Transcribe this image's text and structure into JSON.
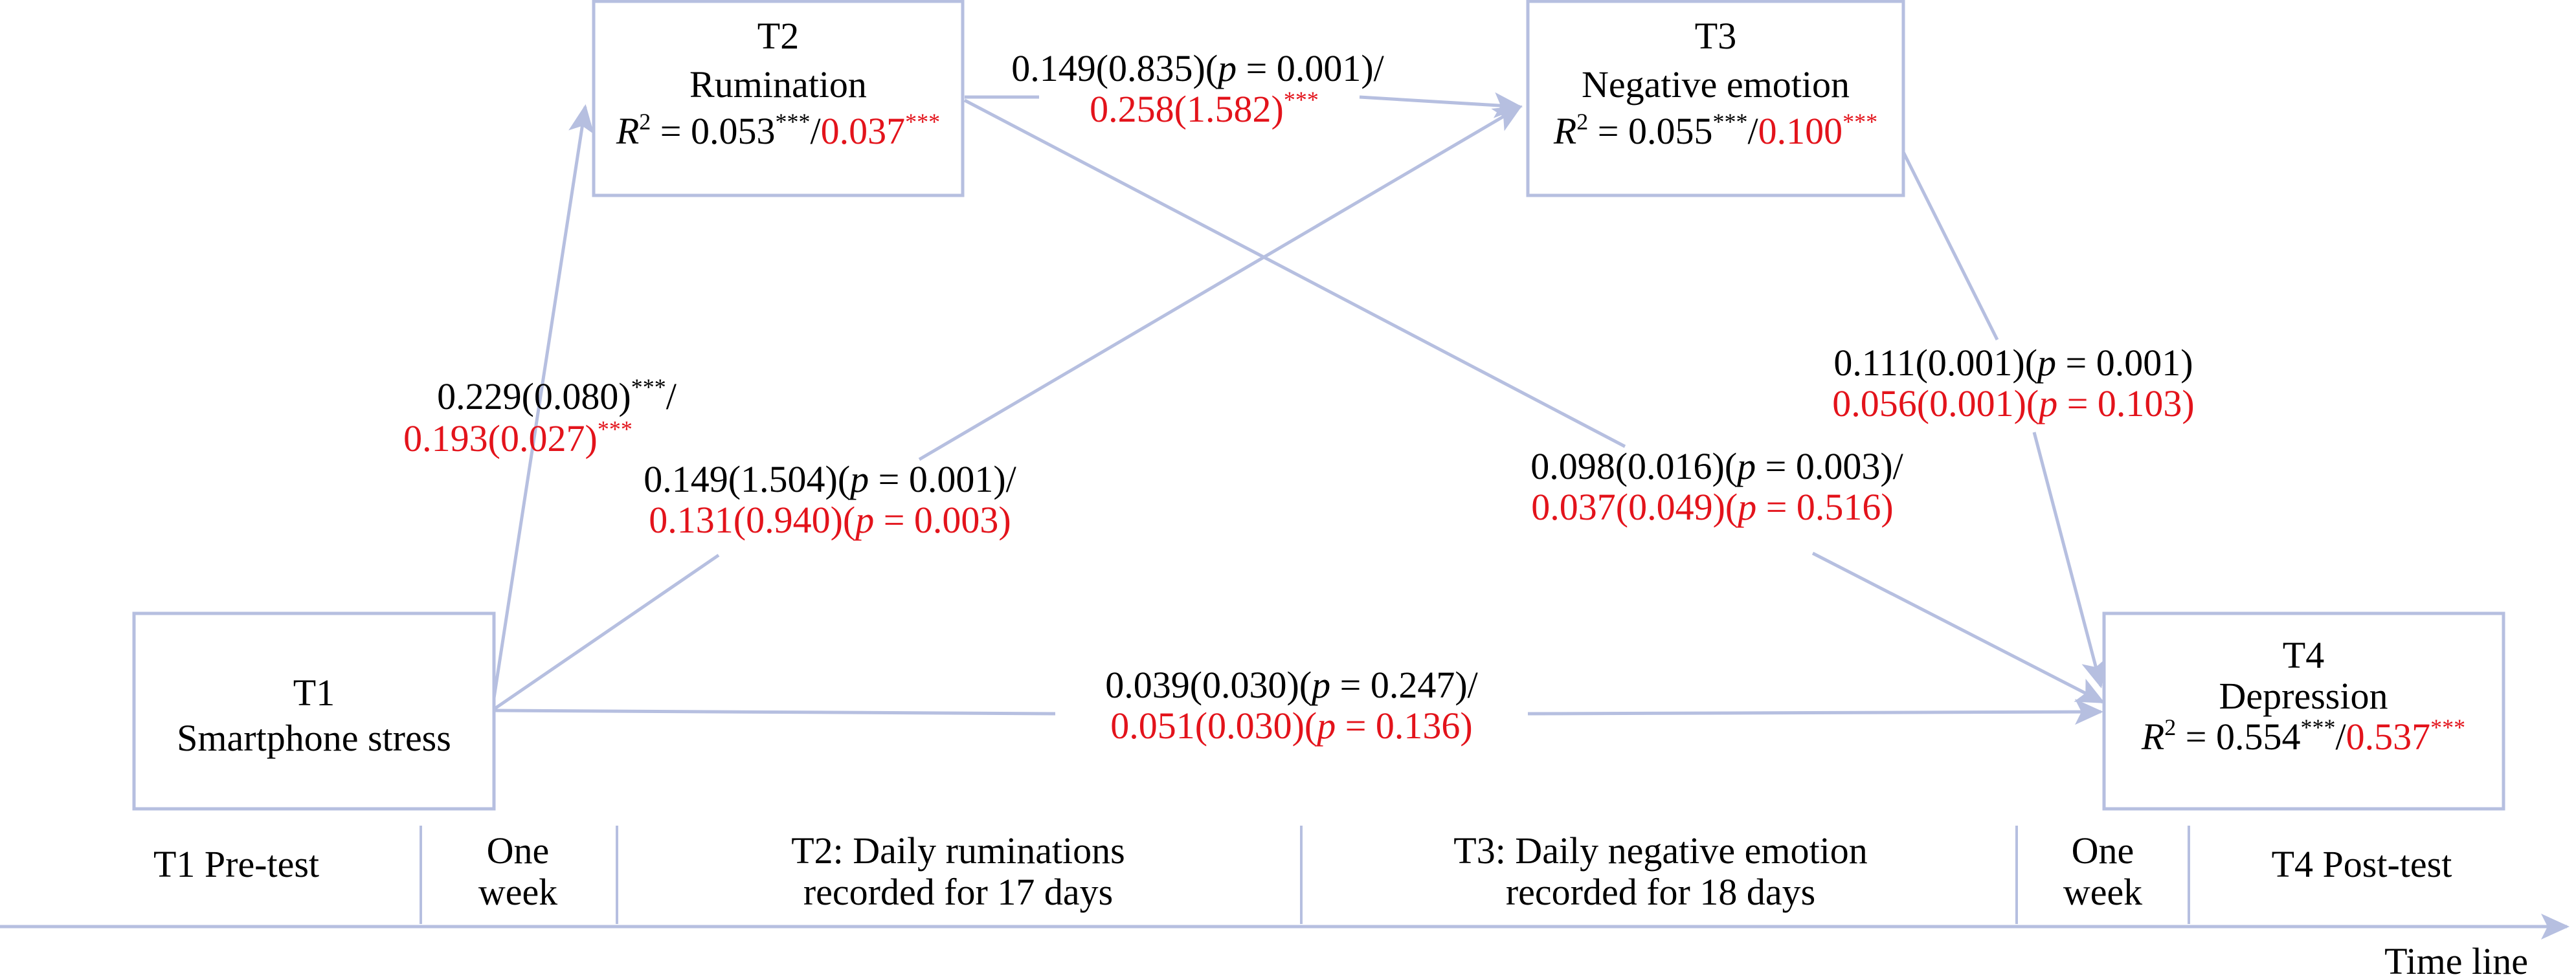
{
  "colors": {
    "line": "#b6bfe0",
    "box_border": "#b6bfe0",
    "text_primary": "#000000",
    "text_highlight": "#e3131b"
  },
  "nodes": {
    "t1": {
      "id_label": "T1",
      "name": "Smartphone stress"
    },
    "t2": {
      "id_label": "T2",
      "name": "Rumination",
      "r2_label": "R",
      "r2_super": "2",
      "r2_eq": " = ",
      "r2_value_black": "0.053",
      "r2_sig_black": "***",
      "r2_sep": "/",
      "r2_value_red": "0.037",
      "r2_sig_red": "***"
    },
    "t3": {
      "id_label": "T3",
      "name": "Negative emotion",
      "r2_label": "R",
      "r2_super": "2",
      "r2_eq": " = ",
      "r2_value_black": "0.055",
      "r2_sig_black": "***",
      "r2_sep": "/",
      "r2_value_red": "0.100",
      "r2_sig_red": "***"
    },
    "t4": {
      "id_label": "T4",
      "name": "Depression",
      "r2_label": "R",
      "r2_super": "2",
      "r2_eq": " = ",
      "r2_value_black": "0.554",
      "r2_sig_black": "***",
      "r2_sep": "/",
      "r2_value_red": "0.537",
      "r2_sig_red": "***"
    }
  },
  "paths": {
    "t1_t2": {
      "black_coef": "0.229(0.080)",
      "black_sig": "***",
      "black_sep": "/",
      "red_coef": "0.193(0.027)",
      "red_sig": "***"
    },
    "t2_t3": {
      "black_coef": "0.149(0.835)(",
      "black_p": "p",
      "black_p_val": " = 0.001)",
      "black_sep": "/",
      "red_coef": "0.258(1.582)",
      "red_sig": "***"
    },
    "t1_t3": {
      "black_coef": "0.149(1.504)(",
      "black_p": "p",
      "black_p_val": " = 0.001)",
      "black_sep": "/",
      "red_coef": "0.131(0.940)(",
      "red_p": "p",
      "red_p_val": " = 0.003)"
    },
    "t2_t4": {
      "black_coef": "0.098(0.016)(",
      "black_p": "p",
      "black_p_val": " = 0.003)",
      "black_sep": "/",
      "red_coef": "0.037(0.049)(",
      "red_p": "p",
      "red_p_val": " = 0.516)"
    },
    "t3_t4": {
      "black_coef": "0.111(0.001)(",
      "black_p": "p",
      "black_p_val": " = 0.001)",
      "red_coef": "0.056(0.001)(",
      "red_p": "p",
      "red_p_val": " = 0.103)"
    },
    "t1_t4": {
      "black_coef": "0.039(0.030)(",
      "black_p": "p",
      "black_p_val": " = 0.247)",
      "black_sep": "/",
      "red_coef": "0.051(0.030)(",
      "red_p": "p",
      "red_p_val": " = 0.136)"
    }
  },
  "timeline": {
    "segments": [
      {
        "line1": "T1 Pre-test",
        "line2": ""
      },
      {
        "line1": "One",
        "line2": "week"
      },
      {
        "line1": "T2: Daily ruminations",
        "line2": "recorded for 17 days"
      },
      {
        "line1": "T3: Daily negative emotion",
        "line2": "recorded for 18 days"
      },
      {
        "line1": "One",
        "line2": "week"
      },
      {
        "line1": "T4 Post-test",
        "line2": ""
      }
    ],
    "axis_label": "Time line"
  }
}
